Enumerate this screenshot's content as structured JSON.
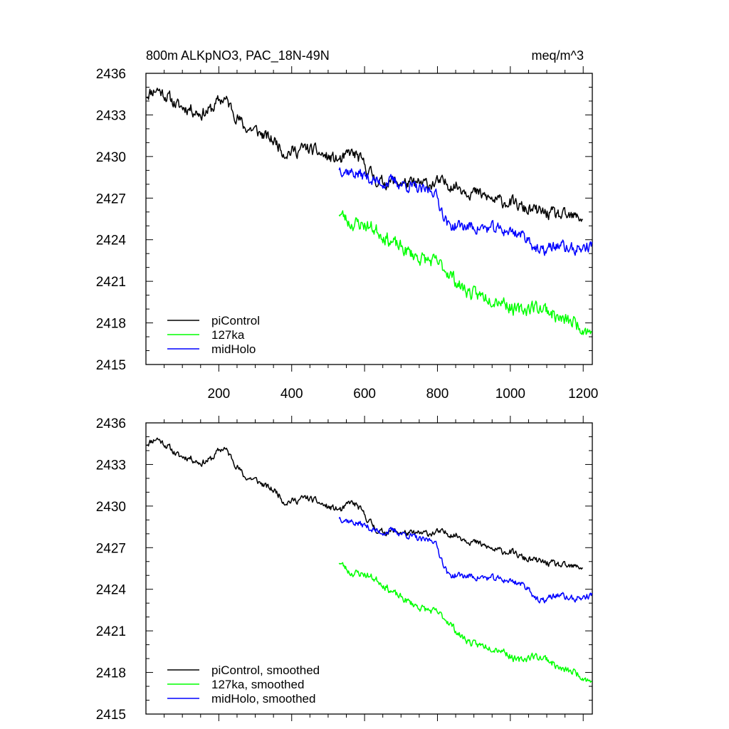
{
  "chart_data": [
    {
      "type": "line",
      "title": "800m ALKpNO3, PAC_18N-49N",
      "units": "meq/m^3",
      "xlabel": "",
      "ylabel": "",
      "xlim": [
        0,
        1225
      ],
      "ylim": [
        2415,
        2436
      ],
      "xticks": [
        200,
        400,
        600,
        800,
        1000,
        1200
      ],
      "xtick_labels": [
        "200",
        "400",
        "600",
        "800",
        "1000",
        "1200"
      ],
      "yticks": [
        2415,
        2418,
        2421,
        2424,
        2427,
        2430,
        2433,
        2436
      ],
      "ytick_labels": [
        "2415",
        "2418",
        "2421",
        "2424",
        "2427",
        "2430",
        "2433",
        "2436"
      ],
      "legend_position": "bottom-left",
      "series": [
        {
          "name": "piControl",
          "color": "#000000",
          "x_start": 1,
          "x_end": 1200,
          "noise": 0.38,
          "seed": 11,
          "points": [
            [
              1,
              2434.5
            ],
            [
              30,
              2434.9
            ],
            [
              60,
              2434.3
            ],
            [
              90,
              2433.6
            ],
            [
              120,
              2433.5
            ],
            [
              150,
              2433.1
            ],
            [
              180,
              2433.4
            ],
            [
              200,
              2434.0
            ],
            [
              215,
              2434.2
            ],
            [
              240,
              2433.3
            ],
            [
              270,
              2432.1
            ],
            [
              300,
              2431.9
            ],
            [
              330,
              2431.4
            ],
            [
              360,
              2431.0
            ],
            [
              380,
              2430.3
            ],
            [
              410,
              2430.4
            ],
            [
              440,
              2430.6
            ],
            [
              470,
              2430.3
            ],
            [
              500,
              2429.9
            ],
            [
              540,
              2429.7
            ],
            [
              560,
              2430.3
            ],
            [
              580,
              2430.0
            ],
            [
              610,
              2429.0
            ],
            [
              640,
              2428.1
            ],
            [
              680,
              2428.2
            ],
            [
              720,
              2428.0
            ],
            [
              760,
              2428.0
            ],
            [
              800,
              2428.1
            ],
            [
              840,
              2428.0
            ],
            [
              880,
              2427.6
            ],
            [
              920,
              2427.2
            ],
            [
              960,
              2426.8
            ],
            [
              1000,
              2426.7
            ],
            [
              1040,
              2426.2
            ],
            [
              1080,
              2426.0
            ],
            [
              1120,
              2425.8
            ],
            [
              1160,
              2425.6
            ],
            [
              1200,
              2425.6
            ]
          ]
        },
        {
          "name": "127ka",
          "color": "#00ff00",
          "x_start": 530,
          "x_end": 1225,
          "noise": 0.42,
          "seed": 23,
          "points": [
            [
              530,
              2426.0
            ],
            [
              560,
              2425.2
            ],
            [
              600,
              2425.1
            ],
            [
              640,
              2424.6
            ],
            [
              680,
              2423.7
            ],
            [
              720,
              2423.1
            ],
            [
              760,
              2422.6
            ],
            [
              800,
              2422.3
            ],
            [
              830,
              2421.7
            ],
            [
              860,
              2420.7
            ],
            [
              900,
              2420.0
            ],
            [
              940,
              2419.9
            ],
            [
              980,
              2419.6
            ],
            [
              1020,
              2418.8
            ],
            [
              1060,
              2419.2
            ],
            [
              1100,
              2419.0
            ],
            [
              1140,
              2418.2
            ],
            [
              1180,
              2418.0
            ],
            [
              1225,
              2417.3
            ]
          ]
        },
        {
          "name": "midHolo",
          "color": "#0000ff",
          "x_start": 530,
          "x_end": 1225,
          "noise": 0.36,
          "seed": 37,
          "points": [
            [
              530,
              2429.2
            ],
            [
              560,
              2428.9
            ],
            [
              600,
              2428.6
            ],
            [
              640,
              2428.1
            ],
            [
              680,
              2428.2
            ],
            [
              720,
              2427.9
            ],
            [
              760,
              2427.5
            ],
            [
              790,
              2427.6
            ],
            [
              810,
              2426.3
            ],
            [
              830,
              2425.0
            ],
            [
              860,
              2425.0
            ],
            [
              900,
              2424.9
            ],
            [
              940,
              2424.8
            ],
            [
              980,
              2424.7
            ],
            [
              1020,
              2424.5
            ],
            [
              1050,
              2424.1
            ],
            [
              1080,
              2423.0
            ],
            [
              1100,
              2423.3
            ],
            [
              1130,
              2423.6
            ],
            [
              1170,
              2423.3
            ],
            [
              1200,
              2423.4
            ],
            [
              1225,
              2423.6
            ]
          ]
        }
      ]
    },
    {
      "type": "line",
      "title": "",
      "xlabel": "",
      "ylabel": "",
      "xlim": [
        0,
        1225
      ],
      "ylim": [
        2415,
        2436
      ],
      "xticks": [
        200,
        400,
        600,
        800,
        1000,
        1200
      ],
      "yticks": [
        2415,
        2418,
        2421,
        2424,
        2427,
        2430,
        2433,
        2436
      ],
      "ytick_labels": [
        "2415",
        "2418",
        "2421",
        "2424",
        "2427",
        "2430",
        "2433",
        "2436"
      ],
      "legend_position": "bottom-left",
      "series": [
        {
          "name": "piControl, smoothed",
          "color": "#000000",
          "x_start": 1,
          "x_end": 1200,
          "noise": 0.2,
          "seed": 11,
          "points": [
            [
              1,
              2434.5
            ],
            [
              30,
              2434.9
            ],
            [
              60,
              2434.3
            ],
            [
              90,
              2433.6
            ],
            [
              120,
              2433.5
            ],
            [
              150,
              2433.1
            ],
            [
              180,
              2433.4
            ],
            [
              200,
              2434.0
            ],
            [
              215,
              2434.2
            ],
            [
              240,
              2433.3
            ],
            [
              270,
              2432.1
            ],
            [
              300,
              2431.9
            ],
            [
              330,
              2431.4
            ],
            [
              360,
              2431.0
            ],
            [
              380,
              2430.3
            ],
            [
              410,
              2430.4
            ],
            [
              440,
              2430.6
            ],
            [
              470,
              2430.3
            ],
            [
              500,
              2429.9
            ],
            [
              540,
              2429.7
            ],
            [
              560,
              2430.3
            ],
            [
              580,
              2430.0
            ],
            [
              610,
              2429.0
            ],
            [
              640,
              2428.1
            ],
            [
              680,
              2428.2
            ],
            [
              720,
              2428.0
            ],
            [
              760,
              2428.0
            ],
            [
              800,
              2428.1
            ],
            [
              840,
              2428.0
            ],
            [
              880,
              2427.6
            ],
            [
              920,
              2427.2
            ],
            [
              960,
              2426.8
            ],
            [
              1000,
              2426.7
            ],
            [
              1040,
              2426.2
            ],
            [
              1080,
              2426.0
            ],
            [
              1120,
              2425.8
            ],
            [
              1160,
              2425.6
            ],
            [
              1200,
              2425.6
            ]
          ]
        },
        {
          "name": "127ka, smoothed",
          "color": "#00ff00",
          "x_start": 530,
          "x_end": 1225,
          "noise": 0.22,
          "seed": 23,
          "points": [
            [
              530,
              2426.0
            ],
            [
              560,
              2425.2
            ],
            [
              600,
              2425.1
            ],
            [
              640,
              2424.6
            ],
            [
              680,
              2423.7
            ],
            [
              720,
              2423.1
            ],
            [
              760,
              2422.6
            ],
            [
              800,
              2422.3
            ],
            [
              830,
              2421.7
            ],
            [
              860,
              2420.7
            ],
            [
              900,
              2420.0
            ],
            [
              940,
              2419.9
            ],
            [
              980,
              2419.6
            ],
            [
              1020,
              2418.8
            ],
            [
              1060,
              2419.2
            ],
            [
              1100,
              2419.0
            ],
            [
              1140,
              2418.2
            ],
            [
              1180,
              2418.0
            ],
            [
              1225,
              2417.3
            ]
          ]
        },
        {
          "name": "midHolo, smoothed",
          "color": "#0000ff",
          "x_start": 530,
          "x_end": 1225,
          "noise": 0.2,
          "seed": 37,
          "points": [
            [
              530,
              2429.2
            ],
            [
              560,
              2428.9
            ],
            [
              600,
              2428.6
            ],
            [
              640,
              2428.1
            ],
            [
              680,
              2428.2
            ],
            [
              720,
              2427.9
            ],
            [
              760,
              2427.5
            ],
            [
              790,
              2427.6
            ],
            [
              810,
              2426.3
            ],
            [
              830,
              2425.0
            ],
            [
              860,
              2425.0
            ],
            [
              900,
              2424.9
            ],
            [
              940,
              2424.8
            ],
            [
              980,
              2424.7
            ],
            [
              1020,
              2424.5
            ],
            [
              1050,
              2424.1
            ],
            [
              1080,
              2423.0
            ],
            [
              1100,
              2423.3
            ],
            [
              1130,
              2423.6
            ],
            [
              1170,
              2423.3
            ],
            [
              1200,
              2423.4
            ],
            [
              1225,
              2423.6
            ]
          ]
        }
      ]
    }
  ]
}
